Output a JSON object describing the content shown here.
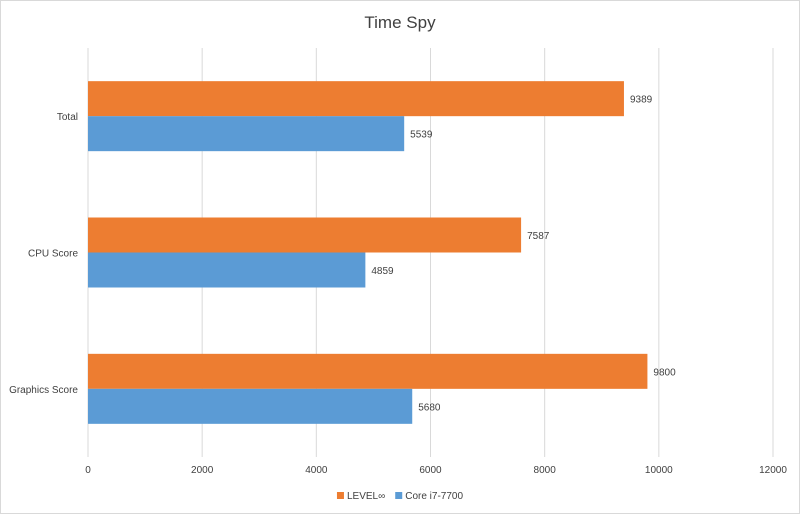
{
  "chart_data": {
    "type": "bar",
    "orientation": "horizontal",
    "title": "Time Spy",
    "categories": [
      "Total",
      "CPU Score",
      "Graphics Score"
    ],
    "series": [
      {
        "name": "LEVEL∞",
        "color": "#ED7D31",
        "values": [
          9389,
          7587,
          9800
        ]
      },
      {
        "name": "Core i7-7700",
        "color": "#5B9BD5",
        "values": [
          5539,
          4859,
          5680
        ]
      }
    ],
    "xlim": [
      0,
      12000
    ],
    "xticks": [
      "0",
      "2000",
      "4000",
      "6000",
      "8000",
      "10000",
      "12000"
    ],
    "grid": true,
    "legend_position": "bottom"
  }
}
